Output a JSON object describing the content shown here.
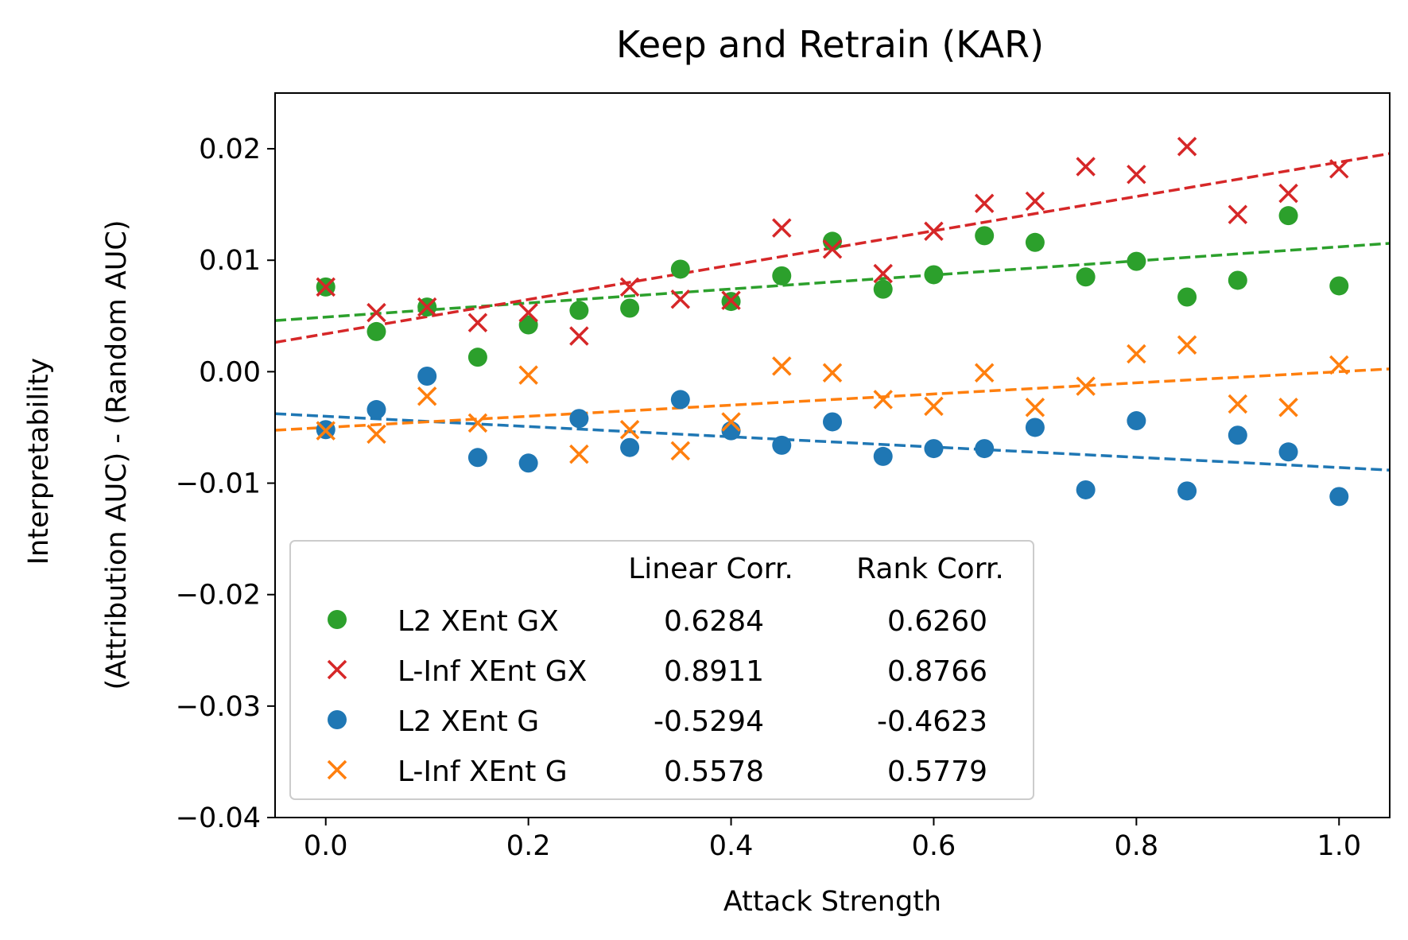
{
  "chart_data": {
    "type": "scatter",
    "title": "Keep and Retrain (KAR)",
    "xlabel": "Attack Strength",
    "ylabel_line1": "Interpretability",
    "ylabel_line2": "(Attribution AUC) - (Random AUC)",
    "xlim": [
      -0.05,
      1.05
    ],
    "ylim": [
      -0.04,
      0.025
    ],
    "xticks": [
      0.0,
      0.2,
      0.4,
      0.6,
      0.8,
      1.0
    ],
    "xtick_labels": [
      "0.0",
      "0.2",
      "0.4",
      "0.6",
      "0.8",
      "1.0"
    ],
    "yticks": [
      -0.04,
      -0.03,
      -0.02,
      -0.01,
      0.0,
      0.01,
      0.02
    ],
    "ytick_labels": [
      "−0.04",
      "−0.03",
      "−0.02",
      "−0.01",
      "0.00",
      "0.01",
      "0.02"
    ],
    "grid": false,
    "legend_position": "lower-left",
    "legend_header": {
      "linear": "Linear Corr.",
      "rank": "Rank Corr."
    },
    "x": [
      0.0,
      0.05,
      0.1,
      0.15,
      0.2,
      0.25,
      0.3,
      0.35,
      0.4,
      0.45,
      0.5,
      0.55,
      0.6,
      0.65,
      0.7,
      0.75,
      0.8,
      0.85,
      0.9,
      0.95,
      1.0
    ],
    "series": [
      {
        "name": "L2 XEnt GX",
        "marker": "circle",
        "color": "#2ca02c",
        "linear_corr": "0.6284",
        "rank_corr": "0.6260",
        "values": [
          0.0076,
          0.0036,
          0.0058,
          0.0013,
          0.0042,
          0.0055,
          0.0057,
          0.0092,
          0.0063,
          0.0086,
          0.0117,
          0.0074,
          0.0087,
          0.0122,
          0.0116,
          0.0085,
          0.0099,
          0.0067,
          0.0082,
          0.014,
          0.0077
        ],
        "fit": [
          0.0049,
          0.0112
        ]
      },
      {
        "name": "L-Inf XEnt GX",
        "marker": "x",
        "color": "#d62728",
        "linear_corr": "0.8911",
        "rank_corr": "0.8766",
        "values": [
          0.0076,
          0.0053,
          0.0058,
          0.0044,
          0.0053,
          0.0032,
          0.0076,
          0.0065,
          0.0064,
          0.0129,
          0.011,
          0.0088,
          0.0126,
          0.0151,
          0.0153,
          0.0184,
          0.0177,
          0.0202,
          0.0141,
          0.016,
          0.0182
        ],
        "fit": [
          0.0034,
          0.0188
        ]
      },
      {
        "name": "L2 XEnt G",
        "marker": "circle",
        "color": "#1f77b4",
        "linear_corr": "-0.5294",
        "rank_corr": "-0.4623",
        "values": [
          -0.0052,
          -0.0034,
          -0.0004,
          -0.0077,
          -0.0082,
          -0.0042,
          -0.0068,
          -0.0025,
          -0.0053,
          -0.0066,
          -0.0045,
          -0.0076,
          -0.0069,
          -0.0069,
          -0.005,
          -0.0106,
          -0.0044,
          -0.0107,
          -0.0057,
          -0.0072,
          -0.0112
        ],
        "fit": [
          -0.004,
          -0.0086
        ]
      },
      {
        "name": "L-Inf XEnt G",
        "marker": "x",
        "color": "#ff7f0e",
        "linear_corr": "0.5578",
        "rank_corr": "0.5779",
        "values": [
          -0.0053,
          -0.0056,
          -0.0022,
          -0.0046,
          -0.0003,
          -0.0074,
          -0.0052,
          -0.0071,
          -0.0045,
          0.0005,
          -0.0001,
          -0.0025,
          -0.0031,
          -0.0001,
          -0.0032,
          -0.0013,
          0.0016,
          0.0024,
          -0.0029,
          -0.0032,
          0.0006
        ],
        "fit": [
          -0.005,
          0.0
        ]
      }
    ]
  }
}
